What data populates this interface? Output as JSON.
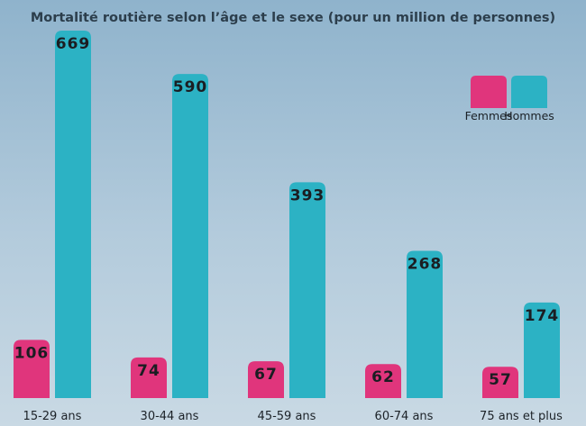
{
  "chart_data": {
    "type": "bar",
    "title": "Mortalité routière selon l’âge et le sexe (pour un million de personnes)",
    "xlabel": "",
    "ylabel": "",
    "categories": [
      "15-29 ans",
      "30-44 ans",
      "45-59 ans",
      "60-74 ans",
      "75 ans et plus"
    ],
    "series": [
      {
        "name": "Femmes",
        "color": "#e0357c",
        "values": [
          106,
          74,
          67,
          62,
          57
        ]
      },
      {
        "name": "Hommes",
        "color": "#2cb2c4",
        "values": [
          669,
          590,
          393,
          268,
          174
        ]
      }
    ],
    "ylim": [
      0,
      669
    ],
    "grid": false,
    "legend": "top-right"
  }
}
